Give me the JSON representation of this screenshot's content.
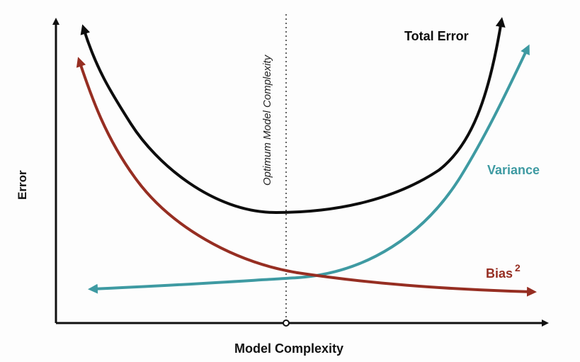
{
  "diagram": {
    "x_axis_label": "Model Complexity",
    "y_axis_label": "Error",
    "optimum_label": "Optimum Model Complexity",
    "curves": {
      "total_error": {
        "label": "Total Error",
        "color": "#0d0d0d"
      },
      "variance": {
        "label": "Variance",
        "color": "#3e9aa2"
      },
      "bias_squared": {
        "label": "Bias",
        "label_superscript": "2",
        "color": "#962e22"
      }
    },
    "axis_color": "#111111"
  }
}
